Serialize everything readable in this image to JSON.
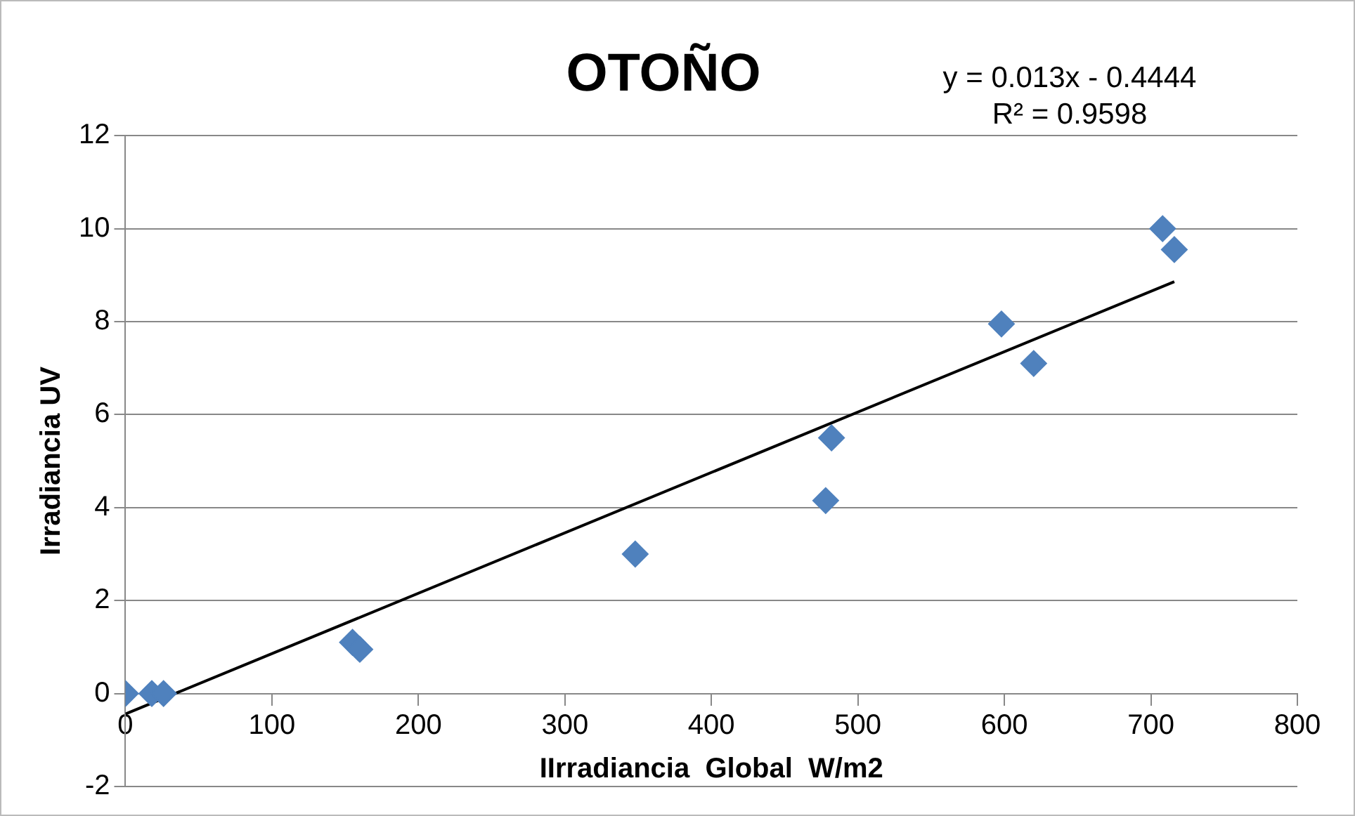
{
  "chart_data": {
    "type": "scatter",
    "title": "OTOÑO",
    "xlabel": "IIrradiancia  Global  W/m2",
    "ylabel": "Irradiancia UV",
    "annotations": [
      "y = 0.013x - 0.4444",
      "R² = 0.9598"
    ],
    "x": [
      0,
      18,
      26,
      155,
      160,
      348,
      478,
      482,
      598,
      620,
      708,
      716
    ],
    "series": [
      {
        "color": "#4f81bd",
        "marker": "diamond",
        "values": [
          0,
          0,
          0,
          1.1,
          0.95,
          3,
          4.15,
          5.5,
          7.95,
          7.1,
          10,
          9.55
        ]
      },
      {
        "type": "line",
        "color": "#000000",
        "marker": "none",
        "x": [
          0,
          716
        ],
        "values": [
          -0.44,
          8.86
        ]
      }
    ],
    "xlim": [
      0,
      800
    ],
    "xticks": [
      0,
      100,
      200,
      300,
      400,
      500,
      600,
      700,
      800
    ],
    "ylim": [
      -2,
      12
    ],
    "yticks": [
      -2,
      0,
      2,
      4,
      6,
      8,
      10,
      12
    ],
    "grid": "y",
    "legend": false
  }
}
